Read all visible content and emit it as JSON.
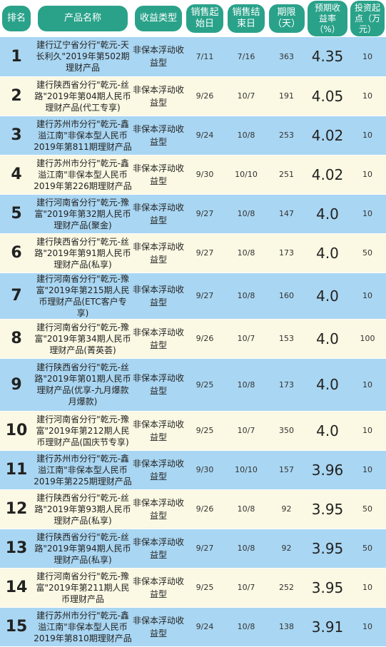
{
  "headers": {
    "rank": "排名",
    "name": "产品名称",
    "type": "收益类型",
    "start": "销售起\n始日",
    "end": "销售结\n束日",
    "term": "期限\n（天）",
    "rate": "预期收\n益率\n（%）",
    "min": "投资起\n点（万\n元）"
  },
  "rows": [
    {
      "rank": "1",
      "name": "建行辽宁省分行\"乾元-天长利久\"2019年第502期理财产品",
      "type": "非保本浮动收益型",
      "start": "7/11",
      "end": "7/16",
      "term": "363",
      "rate": "4.35",
      "min": "10"
    },
    {
      "rank": "2",
      "name": "建行陕西省分行\"乾元-丝路\"2019年第04期人民币理财产品(代工专享)",
      "type": "非保本浮动收益型",
      "start": "9/26",
      "end": "10/7",
      "term": "191",
      "rate": "4.05",
      "min": "10"
    },
    {
      "rank": "3",
      "name": "建行苏州市分行\"乾元-鑫溢江南\"非保本型人民币2019年第811期理财产品",
      "type": "非保本浮动收益型",
      "start": "9/24",
      "end": "10/8",
      "term": "253",
      "rate": "4.02",
      "min": "10"
    },
    {
      "rank": "4",
      "name": "建行苏州市分行\"乾元-鑫溢江南\"非保本型人民币2019年第226期理财产品",
      "type": "非保本浮动收益型",
      "start": "9/30",
      "end": "10/10",
      "term": "251",
      "rate": "4.02",
      "min": "10"
    },
    {
      "rank": "5",
      "name": "建行河南省分行\"乾元-豫富\"2019年第32期人民币理财产品(聚金)",
      "type": "非保本浮动收益型",
      "start": "9/27",
      "end": "10/8",
      "term": "147",
      "rate": "4.0",
      "min": "10"
    },
    {
      "rank": "6",
      "name": "建行陕西省分行\"乾元-丝路\"2019年第91期人民币理财产品(私享)",
      "type": "非保本浮动收益型",
      "start": "9/27",
      "end": "10/8",
      "term": "173",
      "rate": "4.0",
      "min": "50"
    },
    {
      "rank": "7",
      "name": "建行河南省分行\"乾元-豫富\"2019年第215期人民币理财产品(ETC客户专享)",
      "type": "非保本浮动收益型",
      "start": "9/27",
      "end": "10/8",
      "term": "160",
      "rate": "4.0",
      "min": "10"
    },
    {
      "rank": "8",
      "name": "建行河南省分行\"乾元-豫富\"2019年第34期人民币理财产品(菁英荟)",
      "type": "非保本浮动收益型",
      "start": "9/26",
      "end": "10/7",
      "term": "153",
      "rate": "4.0",
      "min": "100"
    },
    {
      "rank": "9",
      "name": "建行陕西省分行\"乾元-丝路\"2019年第01期人民币理财产品(优享-九月爆款月爆款)",
      "type": "非保本浮动收益型",
      "start": "9/25",
      "end": "10/8",
      "term": "173",
      "rate": "4.0",
      "min": "10"
    },
    {
      "rank": "10",
      "name": "建行河南省分行\"乾元-豫富\"2019年第212期人民币理财产品(国庆节专享)",
      "type": "非保本浮动收益型",
      "start": "9/25",
      "end": "10/7",
      "term": "350",
      "rate": "4.0",
      "min": "10"
    },
    {
      "rank": "11",
      "name": "建行苏州市分行\"乾元-鑫溢江南\"非保本型人民币2019年第225期理财产品",
      "type": "非保本浮动收益型",
      "start": "9/30",
      "end": "10/10",
      "term": "157",
      "rate": "3.96",
      "min": "10"
    },
    {
      "rank": "12",
      "name": "建行陕西省分行\"乾元-丝路\"2019年第93期人民币理财产品(私享)",
      "type": "非保本浮动收益型",
      "start": "9/26",
      "end": "10/8",
      "term": "92",
      "rate": "3.95",
      "min": "50"
    },
    {
      "rank": "13",
      "name": "建行陕西省分行\"乾元-丝路\"2019年第94期人民币理财产品(私享)",
      "type": "非保本浮动收益型",
      "start": "9/27",
      "end": "10/8",
      "term": "92",
      "rate": "3.95",
      "min": "50"
    },
    {
      "rank": "14",
      "name": "建行河南省分行\"乾元-豫富\"2019年第211期人民币理财产品",
      "type": "非保本浮动收益型",
      "start": "9/25",
      "end": "10/7",
      "term": "252",
      "rate": "3.95",
      "min": "10"
    },
    {
      "rank": "15",
      "name": "建行苏州市分行\"乾元-鑫溢江南\"非保本型人民币2019年第810期理财产品",
      "type": "非保本浮动收益型",
      "start": "9/24",
      "end": "10/8",
      "term": "138",
      "rate": "3.91",
      "min": "10"
    }
  ],
  "colors": {
    "header_pill": "#2aa28a",
    "row_blue": "#a9d6f2",
    "row_cream": "#fbf8e3"
  }
}
